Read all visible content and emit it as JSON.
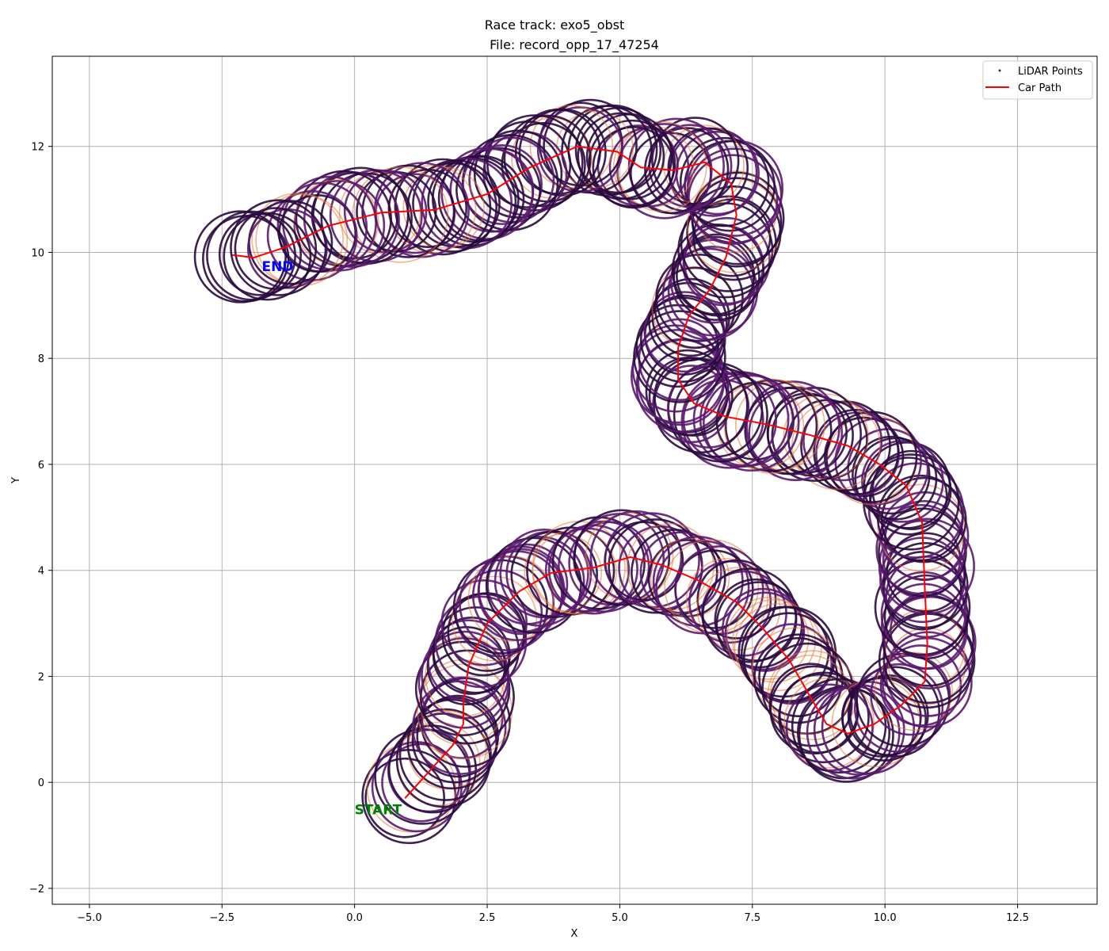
{
  "chart_data": {
    "type": "scatter",
    "title": "Race track: exo5_obst",
    "subtitle": "File: record_opp_17_47254",
    "xlabel": "X",
    "ylabel": "Y",
    "xlim": [
      -5.7,
      14.0
    ],
    "ylim": [
      -2.3,
      13.7
    ],
    "xticks": [
      -5.0,
      -2.5,
      0.0,
      2.5,
      5.0,
      7.5,
      10.0,
      12.5
    ],
    "xtick_labels": [
      "−5.0",
      "−2.5",
      "0.0",
      "2.5",
      "5.0",
      "7.5",
      "10.0",
      "12.5"
    ],
    "yticks": [
      -2,
      0,
      2,
      4,
      6,
      8,
      10,
      12
    ],
    "ytick_labels": [
      "−2",
      "0",
      "2",
      "4",
      "6",
      "8",
      "10",
      "12"
    ],
    "grid": true,
    "legend_position": "top-right",
    "legend": [
      {
        "label": "LiDAR Points",
        "marker": "point",
        "color": "#4a1a5a"
      },
      {
        "label": "Car Path",
        "marker": "line",
        "color": "#ff0000"
      }
    ],
    "colors": {
      "car_path": "#ff0000",
      "lidar_dark": "#2a0a3e",
      "lidar_mid": "#5a1a6e",
      "lidar_hot": "#e8742a",
      "start_label": "#008000",
      "end_label": "#0000ff",
      "grid": "#b0b0b0"
    },
    "annotations": [
      {
        "text": "START",
        "x": 0.0,
        "y": -0.6,
        "color": "#008000"
      },
      {
        "text": "END",
        "x": -1.75,
        "y": 9.65,
        "color": "#0000ff"
      }
    ],
    "series": [
      {
        "name": "Car Path",
        "points": [
          [
            0.95,
            -0.3
          ],
          [
            1.4,
            0.2
          ],
          [
            1.85,
            0.7
          ],
          [
            2.05,
            1.1
          ],
          [
            2.05,
            1.5
          ],
          [
            2.15,
            2.2
          ],
          [
            2.5,
            3.0
          ],
          [
            3.1,
            3.6
          ],
          [
            3.7,
            3.95
          ],
          [
            4.5,
            4.05
          ],
          [
            5.2,
            4.25
          ],
          [
            5.8,
            4.1
          ],
          [
            6.5,
            3.8
          ],
          [
            7.2,
            3.4
          ],
          [
            7.7,
            2.9
          ],
          [
            8.2,
            2.3
          ],
          [
            8.6,
            1.6
          ],
          [
            8.9,
            1.1
          ],
          [
            9.3,
            0.92
          ],
          [
            9.8,
            1.1
          ],
          [
            10.3,
            1.45
          ],
          [
            10.75,
            1.9
          ],
          [
            10.8,
            2.6
          ],
          [
            10.75,
            3.7
          ],
          [
            10.7,
            4.9
          ],
          [
            10.4,
            5.6
          ],
          [
            9.9,
            6.0
          ],
          [
            9.3,
            6.35
          ],
          [
            8.6,
            6.55
          ],
          [
            7.8,
            6.75
          ],
          [
            7.0,
            6.9
          ],
          [
            6.4,
            7.15
          ],
          [
            6.1,
            7.6
          ],
          [
            6.1,
            8.2
          ],
          [
            6.3,
            8.8
          ],
          [
            6.7,
            9.3
          ],
          [
            7.0,
            9.9
          ],
          [
            7.2,
            10.7
          ],
          [
            7.1,
            11.3
          ],
          [
            6.6,
            11.7
          ],
          [
            6.0,
            11.55
          ],
          [
            5.4,
            11.6
          ],
          [
            4.95,
            11.9
          ],
          [
            4.2,
            12.0
          ],
          [
            3.3,
            11.6
          ],
          [
            2.5,
            11.1
          ],
          [
            1.5,
            10.8
          ],
          [
            0.5,
            10.75
          ],
          [
            -0.5,
            10.5
          ],
          [
            -1.3,
            10.1
          ],
          [
            -1.9,
            9.9
          ],
          [
            -2.3,
            9.95
          ]
        ]
      }
    ]
  }
}
